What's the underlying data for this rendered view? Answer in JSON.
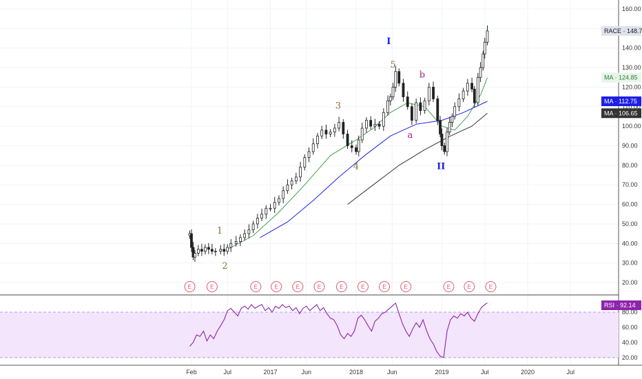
{
  "chart_data": {
    "type": "candlestick",
    "symbol": "RACE",
    "last_price": "148.75",
    "price_axis": {
      "min": 15,
      "max": 165,
      "ticks": [
        "160.00",
        "150.00",
        "140.00",
        "130.00",
        "120.00",
        "110.00",
        "100.00",
        "90.00",
        "80.00",
        "70.00",
        "60.00",
        "50.00",
        "40.00",
        "30.00",
        "20.00"
      ]
    },
    "x_axis_ticks": [
      "Feb",
      "Jul",
      "2017",
      "Jun",
      "2018",
      "Jun",
      "2019",
      "Jul",
      "2020",
      "Jul"
    ],
    "price_series": [
      [
        2016.06,
        45
      ],
      [
        2016.08,
        38
      ],
      [
        2016.1,
        33
      ],
      [
        2016.12,
        35
      ],
      [
        2016.16,
        37
      ],
      [
        2016.2,
        36
      ],
      [
        2016.24,
        38
      ],
      [
        2016.28,
        37
      ],
      [
        2016.32,
        36
      ],
      [
        2016.36,
        36
      ],
      [
        2016.42,
        37
      ],
      [
        2016.46,
        36
      ],
      [
        2016.5,
        38
      ],
      [
        2016.54,
        40
      ],
      [
        2016.6,
        41
      ],
      [
        2016.65,
        43
      ],
      [
        2016.7,
        45
      ],
      [
        2016.75,
        47
      ],
      [
        2016.8,
        50
      ],
      [
        2016.85,
        53
      ],
      [
        2016.9,
        55
      ],
      [
        2016.95,
        58
      ],
      [
        2017.0,
        58
      ],
      [
        2017.05,
        61
      ],
      [
        2017.1,
        63
      ],
      [
        2017.15,
        67
      ],
      [
        2017.2,
        70
      ],
      [
        2017.25,
        72
      ],
      [
        2017.3,
        74
      ],
      [
        2017.35,
        79
      ],
      [
        2017.4,
        84
      ],
      [
        2017.45,
        87
      ],
      [
        2017.5,
        91
      ],
      [
        2017.55,
        95
      ],
      [
        2017.6,
        98
      ],
      [
        2017.65,
        96
      ],
      [
        2017.7,
        97
      ],
      [
        2017.75,
        99
      ],
      [
        2017.8,
        102
      ],
      [
        2017.85,
        96
      ],
      [
        2017.9,
        90
      ],
      [
        2017.95,
        89
      ],
      [
        2018.0,
        87
      ],
      [
        2018.03,
        93
      ],
      [
        2018.07,
        99
      ],
      [
        2018.12,
        103
      ],
      [
        2018.17,
        100
      ],
      [
        2018.22,
        101
      ],
      [
        2018.27,
        100
      ],
      [
        2018.32,
        107
      ],
      [
        2018.37,
        113
      ],
      [
        2018.4,
        115
      ],
      [
        2018.43,
        120
      ],
      [
        2018.46,
        128
      ],
      [
        2018.5,
        122
      ],
      [
        2018.55,
        115
      ],
      [
        2018.6,
        110
      ],
      [
        2018.65,
        103
      ],
      [
        2018.7,
        112
      ],
      [
        2018.75,
        108
      ],
      [
        2018.8,
        113
      ],
      [
        2018.85,
        120
      ],
      [
        2018.9,
        114
      ],
      [
        2018.95,
        103
      ],
      [
        2018.98,
        96
      ],
      [
        2019.0,
        90
      ],
      [
        2019.03,
        87
      ],
      [
        2019.06,
        97
      ],
      [
        2019.09,
        102
      ],
      [
        2019.12,
        105
      ],
      [
        2019.15,
        110
      ],
      [
        2019.2,
        114
      ],
      [
        2019.25,
        118
      ],
      [
        2019.3,
        122
      ],
      [
        2019.35,
        119
      ],
      [
        2019.38,
        112
      ],
      [
        2019.42,
        125
      ],
      [
        2019.45,
        130
      ],
      [
        2019.48,
        137
      ],
      [
        2019.5,
        143
      ],
      [
        2019.53,
        148.75
      ]
    ],
    "ma_lines": [
      {
        "label": "MA",
        "value": "124.85",
        "color": "#43a047",
        "points": [
          [
            2016.5,
            37
          ],
          [
            2016.8,
            44
          ],
          [
            2017.1,
            56
          ],
          [
            2017.4,
            70
          ],
          [
            2017.7,
            85
          ],
          [
            2018.0,
            93
          ],
          [
            2018.2,
            99
          ],
          [
            2018.4,
            107
          ],
          [
            2018.6,
            112
          ],
          [
            2018.8,
            110
          ],
          [
            2019.0,
            100
          ],
          [
            2019.15,
            98
          ],
          [
            2019.3,
            105
          ],
          [
            2019.45,
            116
          ],
          [
            2019.53,
            124.85
          ]
        ]
      },
      {
        "label": "MA",
        "value": "112.75",
        "color": "#1e1ee6",
        "points": [
          [
            2016.88,
            43
          ],
          [
            2017.2,
            51
          ],
          [
            2017.5,
            62
          ],
          [
            2017.8,
            74
          ],
          [
            2018.1,
            85
          ],
          [
            2018.4,
            95
          ],
          [
            2018.7,
            101
          ],
          [
            2019.0,
            103
          ],
          [
            2019.25,
            107
          ],
          [
            2019.53,
            112.75
          ]
        ]
      },
      {
        "label": "MA",
        "value": "106.65",
        "color": "#333333",
        "points": [
          [
            2017.9,
            60
          ],
          [
            2018.2,
            70
          ],
          [
            2018.5,
            80
          ],
          [
            2018.8,
            88
          ],
          [
            2019.1,
            95
          ],
          [
            2019.35,
            100
          ],
          [
            2019.53,
            106.65
          ]
        ]
      }
    ],
    "wave_labels": [
      {
        "text": "1",
        "x": 2016.41,
        "y": 45,
        "color": "#8b6a3e"
      },
      {
        "text": "2",
        "x": 2016.47,
        "y": 27,
        "color": "#7a7a2e"
      },
      {
        "text": "3",
        "x": 2017.79,
        "y": 109,
        "color": "#8b6a3e"
      },
      {
        "text": "4",
        "x": 2018.0,
        "y": 78,
        "color": "#7a7a2e"
      },
      {
        "text": "5",
        "x": 2018.43,
        "y": 130,
        "color": "#8b6a3e"
      },
      {
        "text": "I",
        "x": 2018.38,
        "y": 142,
        "color": "#1e1ee6"
      },
      {
        "text": "a",
        "x": 2018.63,
        "y": 94,
        "color": "#9c1e8a"
      },
      {
        "text": "b",
        "x": 2018.77,
        "y": 125,
        "color": "#9c1e8a"
      },
      {
        "text": "II",
        "x": 2018.99,
        "y": 78,
        "color": "#1e1ee6"
      }
    ],
    "earnings_markers": [
      2016.06,
      2016.32,
      2016.83,
      2017.07,
      2017.32,
      2017.57,
      2017.83,
      2018.08,
      2018.33,
      2018.58,
      2019.08,
      2019.32,
      2019.57
    ],
    "earnings_label": "E",
    "rsi": {
      "label": "RSI",
      "value": "92.14",
      "axis_ticks": [
        "80.00",
        "60.00",
        "40.00",
        "20.00"
      ],
      "overbought": 80,
      "oversold": 20,
      "series": [
        [
          2016.06,
          35
        ],
        [
          2016.1,
          40
        ],
        [
          2016.14,
          50
        ],
        [
          2016.18,
          48
        ],
        [
          2016.22,
          55
        ],
        [
          2016.26,
          42
        ],
        [
          2016.3,
          50
        ],
        [
          2016.34,
          45
        ],
        [
          2016.38,
          55
        ],
        [
          2016.42,
          62
        ],
        [
          2016.46,
          70
        ],
        [
          2016.5,
          82
        ],
        [
          2016.54,
          85
        ],
        [
          2016.58,
          80
        ],
        [
          2016.62,
          75
        ],
        [
          2016.66,
          85
        ],
        [
          2016.7,
          88
        ],
        [
          2016.74,
          84
        ],
        [
          2016.78,
          90
        ],
        [
          2016.82,
          85
        ],
        [
          2016.86,
          88
        ],
        [
          2016.9,
          90
        ],
        [
          2016.94,
          82
        ],
        [
          2016.98,
          86
        ],
        [
          2017.02,
          80
        ],
        [
          2017.06,
          88
        ],
        [
          2017.1,
          85
        ],
        [
          2017.14,
          90
        ],
        [
          2017.18,
          86
        ],
        [
          2017.22,
          88
        ],
        [
          2017.26,
          82
        ],
        [
          2017.3,
          86
        ],
        [
          2017.34,
          78
        ],
        [
          2017.38,
          85
        ],
        [
          2017.42,
          88
        ],
        [
          2017.46,
          82
        ],
        [
          2017.5,
          86
        ],
        [
          2017.54,
          90
        ],
        [
          2017.58,
          82
        ],
        [
          2017.62,
          86
        ],
        [
          2017.66,
          78
        ],
        [
          2017.7,
          72
        ],
        [
          2017.74,
          70
        ],
        [
          2017.78,
          62
        ],
        [
          2017.82,
          50
        ],
        [
          2017.86,
          45
        ],
        [
          2017.9,
          52
        ],
        [
          2017.94,
          48
        ],
        [
          2017.98,
          55
        ],
        [
          2018.02,
          72
        ],
        [
          2018.06,
          76
        ],
        [
          2018.1,
          70
        ],
        [
          2018.14,
          62
        ],
        [
          2018.18,
          55
        ],
        [
          2018.22,
          68
        ],
        [
          2018.26,
          72
        ],
        [
          2018.3,
          78
        ],
        [
          2018.34,
          80
        ],
        [
          2018.38,
          84
        ],
        [
          2018.42,
          88
        ],
        [
          2018.46,
          92
        ],
        [
          2018.5,
          78
        ],
        [
          2018.54,
          65
        ],
        [
          2018.58,
          55
        ],
        [
          2018.62,
          48
        ],
        [
          2018.66,
          58
        ],
        [
          2018.7,
          66
        ],
        [
          2018.74,
          60
        ],
        [
          2018.78,
          70
        ],
        [
          2018.82,
          56
        ],
        [
          2018.86,
          45
        ],
        [
          2018.9,
          38
        ],
        [
          2018.94,
          28
        ],
        [
          2018.98,
          22
        ],
        [
          2019.02,
          20
        ],
        [
          2019.06,
          55
        ],
        [
          2019.1,
          70
        ],
        [
          2019.14,
          75
        ],
        [
          2019.18,
          72
        ],
        [
          2019.22,
          78
        ],
        [
          2019.26,
          75
        ],
        [
          2019.3,
          80
        ],
        [
          2019.34,
          72
        ],
        [
          2019.38,
          68
        ],
        [
          2019.42,
          78
        ],
        [
          2019.46,
          86
        ],
        [
          2019.5,
          90
        ],
        [
          2019.53,
          92.14
        ]
      ]
    }
  }
}
